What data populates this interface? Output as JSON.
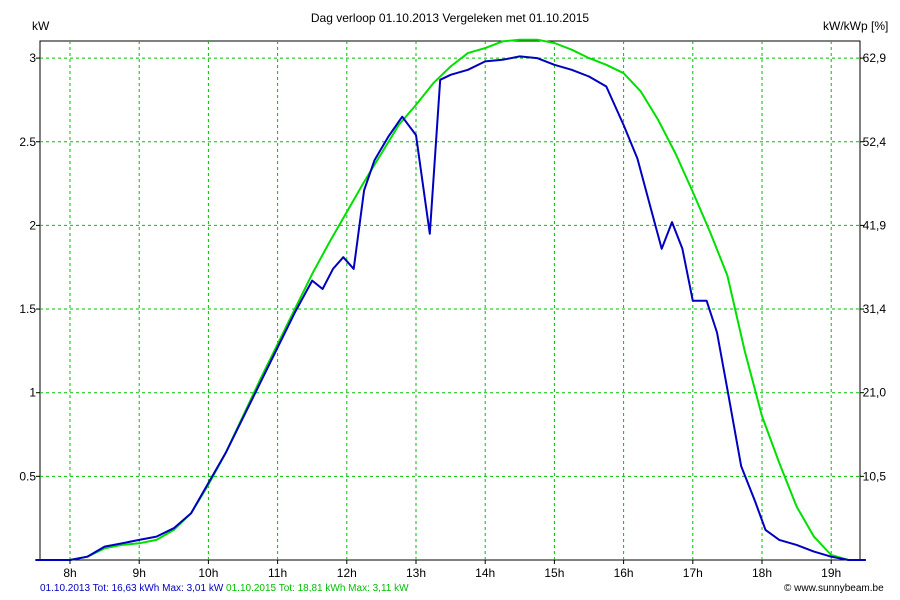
{
  "chart_data": {
    "type": "line",
    "title": "Dag  verloop 01.10.2013    Vergeleken met 01.10.2015",
    "ylabel": "kW",
    "ylabel_right": "kW/kWp [%]",
    "x_ticks": [
      "8h",
      "9h",
      "10h",
      "11h",
      "12h",
      "13h",
      "14h",
      "15h",
      "16h",
      "17h",
      "18h",
      "19h"
    ],
    "y_ticks": [
      "0.5",
      "1",
      "1.5",
      "2",
      "2.5",
      "3"
    ],
    "y_right_ticks": [
      "10,5",
      "21,0",
      "31,4",
      "41,9",
      "52,4",
      "62,9"
    ],
    "xlim": [
      7.5,
      19.5
    ],
    "ylim": [
      0,
      3.1
    ],
    "grid": true,
    "series": [
      {
        "name": "01.10.2015",
        "color": "#00e000",
        "x": [
          7.5,
          8.0,
          8.25,
          8.5,
          8.75,
          9.0,
          9.25,
          9.5,
          9.75,
          10.0,
          10.25,
          10.5,
          10.75,
          11.0,
          11.25,
          11.5,
          11.75,
          12.0,
          12.25,
          12.5,
          12.75,
          13.0,
          13.25,
          13.5,
          13.75,
          14.0,
          14.25,
          14.5,
          14.75,
          15.0,
          15.25,
          15.5,
          15.75,
          16.0,
          16.25,
          16.5,
          16.75,
          17.0,
          17.25,
          17.5,
          17.75,
          18.0,
          18.25,
          18.5,
          18.75,
          19.0,
          19.25,
          19.5
        ],
        "values": [
          0,
          0,
          0.02,
          0.07,
          0.09,
          0.1,
          0.12,
          0.18,
          0.28,
          0.45,
          0.64,
          0.86,
          1.08,
          1.29,
          1.5,
          1.71,
          1.9,
          2.08,
          2.26,
          2.43,
          2.6,
          2.72,
          2.85,
          2.95,
          3.03,
          3.06,
          3.1,
          3.11,
          3.11,
          3.09,
          3.05,
          3.0,
          2.96,
          2.91,
          2.8,
          2.63,
          2.43,
          2.2,
          1.96,
          1.7,
          1.25,
          0.86,
          0.58,
          0.32,
          0.14,
          0.03,
          0,
          0
        ]
      },
      {
        "name": "01.10.2013",
        "color": "#0000c0",
        "x": [
          7.5,
          8.0,
          8.25,
          8.5,
          8.75,
          9.0,
          9.25,
          9.5,
          9.75,
          10.0,
          10.25,
          10.5,
          10.75,
          11.0,
          11.25,
          11.5,
          11.65,
          11.8,
          11.95,
          12.1,
          12.25,
          12.4,
          12.6,
          12.8,
          13.0,
          13.2,
          13.35,
          13.5,
          13.75,
          14.0,
          14.25,
          14.5,
          14.75,
          15.0,
          15.25,
          15.5,
          15.75,
          16.0,
          16.2,
          16.4,
          16.55,
          16.7,
          16.85,
          17.0,
          17.2,
          17.35,
          17.5,
          17.7,
          17.9,
          18.05,
          18.25,
          18.5,
          18.75,
          19.0,
          19.25,
          19.5
        ],
        "values": [
          0,
          0,
          0.02,
          0.08,
          0.1,
          0.12,
          0.14,
          0.19,
          0.28,
          0.46,
          0.64,
          0.85,
          1.06,
          1.27,
          1.48,
          1.67,
          1.62,
          1.74,
          1.81,
          1.74,
          2.21,
          2.39,
          2.53,
          2.65,
          2.54,
          1.95,
          2.87,
          2.9,
          2.93,
          2.98,
          2.99,
          3.01,
          3.0,
          2.96,
          2.93,
          2.89,
          2.83,
          2.6,
          2.4,
          2.09,
          1.86,
          2.02,
          1.86,
          1.55,
          1.55,
          1.36,
          1.02,
          0.56,
          0.35,
          0.18,
          0.12,
          0.09,
          0.05,
          0.02,
          0,
          0
        ]
      }
    ],
    "footer": {
      "s2013": "01.10.2013 Tot: 16,63 kWh Max: 3,01 kW",
      "s2015": "01.10.2015 Tot: 18,81 kWh Max: 3,11 kW",
      "color2013": "#0000c0",
      "color2015": "#00c000"
    },
    "copyright": "© www.sunnybeam.be"
  }
}
